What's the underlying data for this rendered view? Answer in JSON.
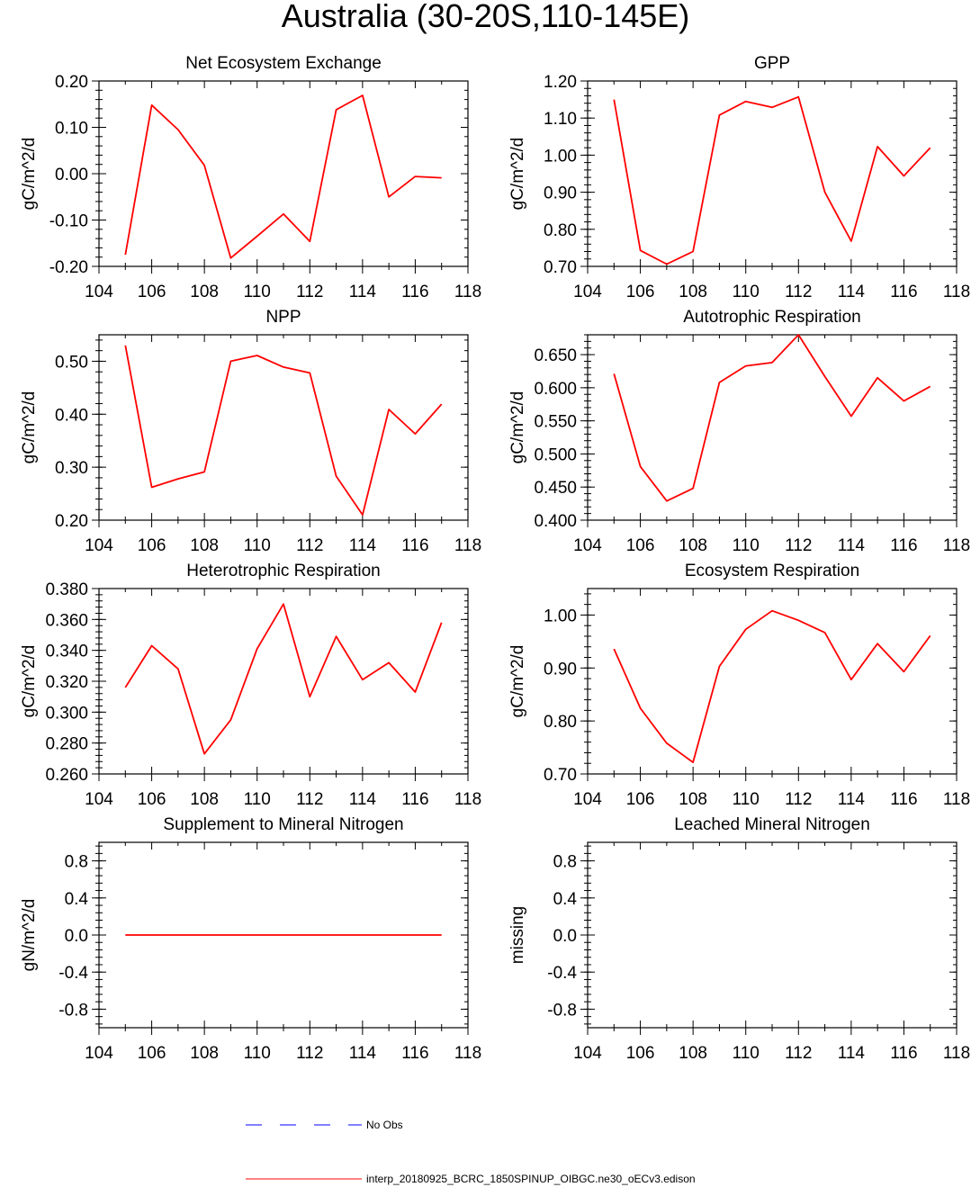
{
  "figure_title": "Australia (30-20S,110-145E)",
  "chart_data": [
    {
      "type": "line",
      "title": "Net Ecosystem Exchange",
      "ylabel": "gC/m^2/d",
      "xlim": [
        104,
        118
      ],
      "ylim": [
        -0.2,
        0.2
      ],
      "x_ticks": [
        "104",
        "106",
        "108",
        "110",
        "112",
        "114",
        "116",
        "118"
      ],
      "y_ticks": [
        "-0.20",
        "-0.10",
        "0.00",
        "0.10",
        "0.20"
      ],
      "series": [
        {
          "name": "interp_20180925_BCRC_1850SPINUP_OIBGC.ne30_oECv3.edison",
          "color": "#ff0000",
          "x": [
            105,
            106,
            107,
            108,
            109,
            110,
            111,
            112,
            113,
            114,
            115,
            116,
            117
          ],
          "y": [
            -0.175,
            0.148,
            0.095,
            0.018,
            -0.182,
            -0.135,
            -0.087,
            -0.146,
            0.138,
            0.169,
            -0.05,
            -0.006,
            -0.009
          ]
        }
      ]
    },
    {
      "type": "line",
      "title": "GPP",
      "ylabel": "gC/m^2/d",
      "xlim": [
        104,
        118
      ],
      "ylim": [
        0.7,
        1.2
      ],
      "x_ticks": [
        "104",
        "106",
        "108",
        "110",
        "112",
        "114",
        "116",
        "118"
      ],
      "y_ticks": [
        "0.70",
        "0.80",
        "0.90",
        "1.00",
        "1.10",
        "1.20"
      ],
      "series": [
        {
          "name": "interp_20180925_BCRC_1850SPINUP_OIBGC.ne30_oECv3.edison",
          "color": "#ff0000",
          "x": [
            105,
            106,
            107,
            108,
            109,
            110,
            111,
            112,
            113,
            114,
            115,
            116,
            117
          ],
          "y": [
            1.15,
            0.743,
            0.706,
            0.74,
            1.108,
            1.145,
            1.129,
            1.157,
            0.9,
            0.768,
            1.023,
            0.944,
            1.02
          ]
        }
      ]
    },
    {
      "type": "line",
      "title": "NPP",
      "ylabel": "gC/m^2/d",
      "xlim": [
        104,
        118
      ],
      "ylim": [
        0.2,
        0.55
      ],
      "x_ticks": [
        "104",
        "106",
        "108",
        "110",
        "112",
        "114",
        "116",
        "118"
      ],
      "y_ticks": [
        "0.20",
        "0.30",
        "0.40",
        "0.50"
      ],
      "series": [
        {
          "name": "interp_20180925_BCRC_1850SPINUP_OIBGC.ne30_oECv3.edison",
          "color": "#ff0000",
          "x": [
            105,
            106,
            107,
            108,
            109,
            110,
            111,
            112,
            113,
            114,
            115,
            116,
            117
          ],
          "y": [
            0.53,
            0.262,
            0.278,
            0.291,
            0.5,
            0.511,
            0.489,
            0.478,
            0.283,
            0.21,
            0.409,
            0.363,
            0.419
          ]
        }
      ]
    },
    {
      "type": "line",
      "title": "Autotrophic Respiration",
      "ylabel": "gC/m^2/d",
      "xlim": [
        104,
        118
      ],
      "ylim": [
        0.4,
        0.68
      ],
      "x_ticks": [
        "104",
        "106",
        "108",
        "110",
        "112",
        "114",
        "116",
        "118"
      ],
      "y_ticks": [
        "0.400",
        "0.450",
        "0.500",
        "0.550",
        "0.600",
        "0.650"
      ],
      "series": [
        {
          "name": "interp_20180925_BCRC_1850SPINUP_OIBGC.ne30_oECv3.edison",
          "color": "#ff0000",
          "x": [
            105,
            106,
            107,
            108,
            109,
            110,
            111,
            112,
            113,
            114,
            115,
            116,
            117
          ],
          "y": [
            0.621,
            0.481,
            0.429,
            0.448,
            0.608,
            0.633,
            0.638,
            0.68,
            0.617,
            0.557,
            0.615,
            0.58,
            0.602
          ]
        }
      ]
    },
    {
      "type": "line",
      "title": "Heterotrophic Respiration",
      "ylabel": "gC/m^2/d",
      "xlim": [
        104,
        118
      ],
      "ylim": [
        0.26,
        0.38
      ],
      "x_ticks": [
        "104",
        "106",
        "108",
        "110",
        "112",
        "114",
        "116",
        "118"
      ],
      "y_ticks": [
        "0.260",
        "0.280",
        "0.300",
        "0.320",
        "0.340",
        "0.360",
        "0.380"
      ],
      "series": [
        {
          "name": "interp_20180925_BCRC_1850SPINUP_OIBGC.ne30_oECv3.edison",
          "color": "#ff0000",
          "x": [
            105,
            106,
            107,
            108,
            109,
            110,
            111,
            112,
            113,
            114,
            115,
            116,
            117
          ],
          "y": [
            0.316,
            0.343,
            0.328,
            0.273,
            0.295,
            0.341,
            0.37,
            0.31,
            0.349,
            0.321,
            0.332,
            0.313,
            0.358
          ]
        }
      ]
    },
    {
      "type": "line",
      "title": "Ecosystem Respiration",
      "ylabel": "gC/m^2/d",
      "xlim": [
        104,
        118
      ],
      "ylim": [
        0.7,
        1.05
      ],
      "x_ticks": [
        "104",
        "106",
        "108",
        "110",
        "112",
        "114",
        "116",
        "118"
      ],
      "y_ticks": [
        "0.70",
        "0.80",
        "0.90",
        "1.00"
      ],
      "series": [
        {
          "name": "interp_20180925_BCRC_1850SPINUP_OIBGC.ne30_oECv3.edison",
          "color": "#ff0000",
          "x": [
            105,
            106,
            107,
            108,
            109,
            110,
            111,
            112,
            113,
            114,
            115,
            116,
            117
          ],
          "y": [
            0.936,
            0.824,
            0.758,
            0.722,
            0.903,
            0.973,
            1.008,
            0.99,
            0.967,
            0.878,
            0.946,
            0.893,
            0.961
          ]
        }
      ]
    },
    {
      "type": "line",
      "title": "Supplement to Mineral Nitrogen",
      "ylabel": "gN/m^2/d",
      "xlim": [
        104,
        118
      ],
      "ylim": [
        -1,
        1
      ],
      "x_ticks": [
        "104",
        "106",
        "108",
        "110",
        "112",
        "114",
        "116",
        "118"
      ],
      "y_ticks": [
        "-0.8",
        "-0.4",
        "0.0",
        "0.4",
        "0.8"
      ],
      "series": [
        {
          "name": "interp_20180925_BCRC_1850SPINUP_OIBGC.ne30_oECv3.edison",
          "color": "#ff0000",
          "x": [
            105,
            106,
            107,
            108,
            109,
            110,
            111,
            112,
            113,
            114,
            115,
            116,
            117
          ],
          "y": [
            0,
            0,
            0,
            0,
            0,
            0,
            0,
            0,
            0,
            0,
            0,
            0,
            0
          ]
        }
      ]
    },
    {
      "type": "line",
      "title": "Leached Mineral Nitrogen",
      "ylabel": "missing",
      "xlim": [
        104,
        118
      ],
      "ylim": [
        -1,
        1
      ],
      "x_ticks": [
        "104",
        "106",
        "108",
        "110",
        "112",
        "114",
        "116",
        "118"
      ],
      "y_ticks": [
        "-0.8",
        "-0.4",
        "0.0",
        "0.4",
        "0.8"
      ],
      "series": []
    }
  ],
  "legend": {
    "placement": "bottom",
    "entries": [
      {
        "label": "No Obs",
        "color": "#0000ff",
        "style": "dashed"
      },
      {
        "label": "interp_20180925_BCRC_1850SPINUP_OIBGC.ne30_oECv3.edison",
        "color": "#ff0000",
        "style": "solid"
      }
    ]
  }
}
